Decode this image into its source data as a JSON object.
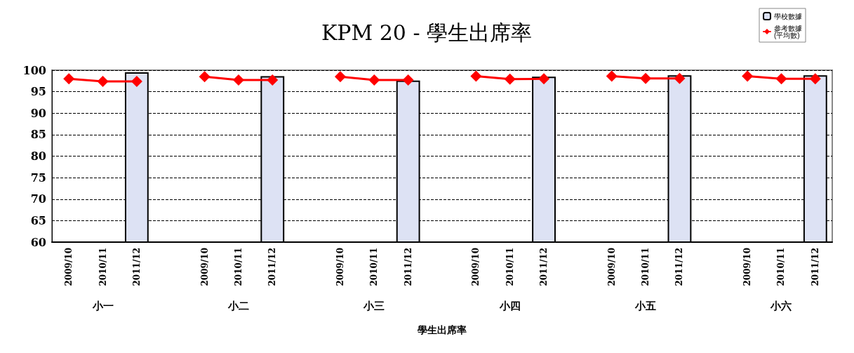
{
  "chart_data": {
    "type": "bar",
    "title": "KPM 20 - 學生出席率",
    "xlabel": "學生出席率",
    "categories": [
      "2009/10",
      "2010/11",
      "2011/12",
      null,
      "2009/10",
      "2010/11",
      "2011/12",
      null,
      "2009/10",
      "2010/11",
      "2011/12",
      null,
      "2009/10",
      "2010/11",
      "2011/12",
      null,
      "2009/10",
      "2010/11",
      "2011/12",
      null,
      "2009/10",
      "2010/11",
      "2011/12"
    ],
    "annotations": [
      "小一",
      "小二",
      "小三",
      "小四",
      "小五",
      "小六"
    ],
    "series": [
      {
        "name": "學校數據",
        "color": "#dde2f4",
        "values": [
          null,
          null,
          99.5,
          null,
          null,
          null,
          98.6,
          null,
          null,
          null,
          97.6,
          null,
          null,
          null,
          98.5,
          null,
          null,
          null,
          98.8,
          null,
          null,
          null,
          98.8
        ]
      },
      {
        "name": "參考數據\n(平均數)",
        "type": "line",
        "color": "#ff0000",
        "values": [
          98.0,
          97.4,
          97.4,
          null,
          98.5,
          97.7,
          97.7,
          null,
          98.5,
          97.7,
          97.7,
          null,
          98.6,
          97.9,
          98.0,
          null,
          98.6,
          98.1,
          98.1,
          null,
          98.6,
          98.0,
          98.0
        ]
      }
    ],
    "ylim": [
      60,
      100
    ],
    "yticks": [
      60,
      65,
      70,
      75,
      80,
      85,
      90,
      95,
      100
    ],
    "grid": "y",
    "legend": "top right",
    "marker": "diamond",
    "line_style": "solid"
  }
}
